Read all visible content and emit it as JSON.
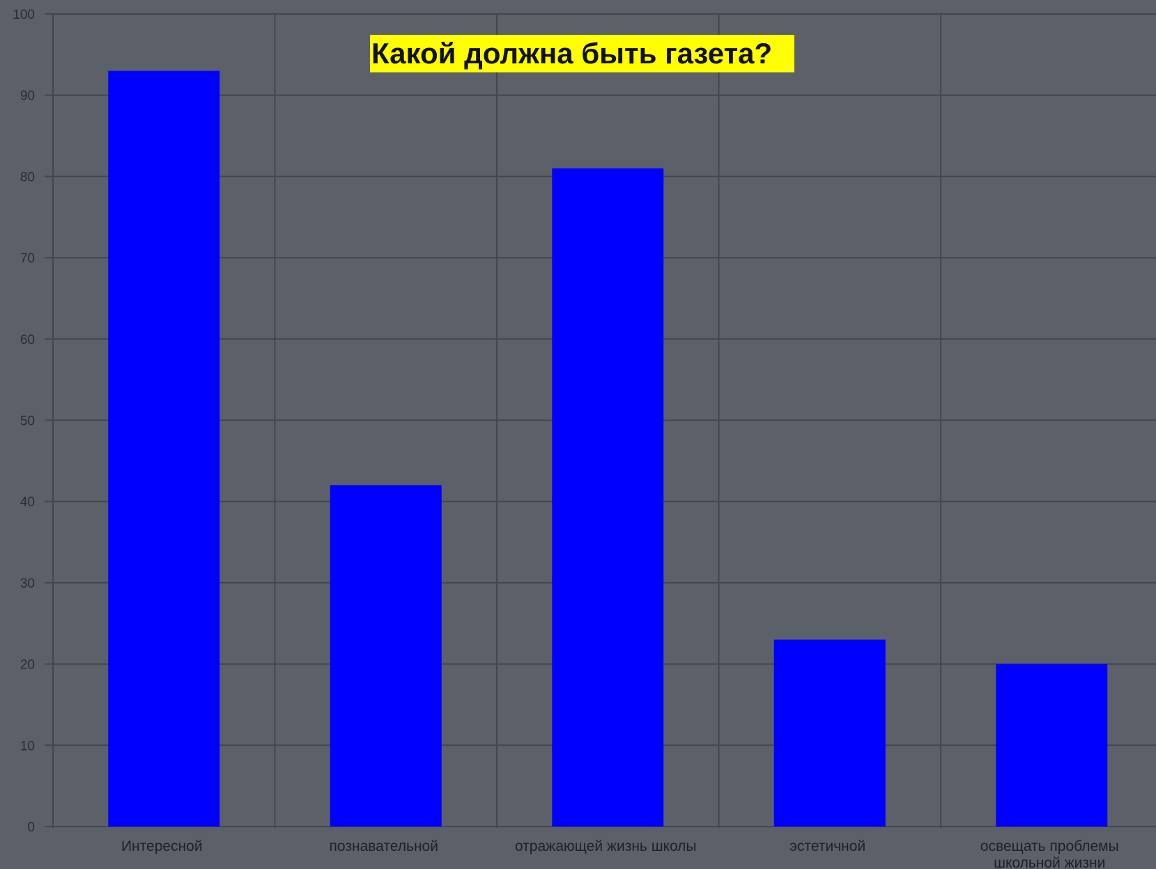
{
  "chart_data": {
    "type": "bar",
    "title": "Какой должна быть газета?",
    "xlabel": "",
    "ylabel": "",
    "ylim": [
      0,
      100
    ],
    "yticks": [
      0,
      10,
      20,
      30,
      40,
      50,
      60,
      70,
      80,
      90,
      100
    ],
    "categories": [
      "Интересной",
      "познавательной",
      "отражающей жизнь школы",
      "эстетичной",
      "освещать проблемы школьной жизни"
    ],
    "category_label_lines": [
      [
        "Интересной"
      ],
      [
        "познавательной"
      ],
      [
        "отражающей жизнь школы"
      ],
      [
        "эстетичной"
      ],
      [
        "освещать проблемы",
        "школьной жизни"
      ]
    ],
    "values": [
      93,
      42,
      81,
      23,
      20
    ],
    "grid": true,
    "legend": "none"
  },
  "colors": {
    "background": "#5c6068",
    "bar": "#0000ff",
    "grid": "#43464d",
    "title_highlight": "#ffff00"
  }
}
